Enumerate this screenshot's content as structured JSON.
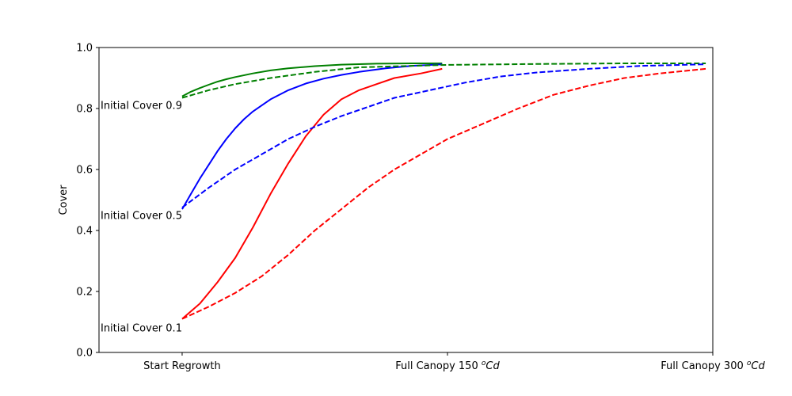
{
  "chart_data": {
    "type": "line",
    "title": "",
    "xlabel": "",
    "ylabel": "Cover",
    "xlim": [
      -47,
      300
    ],
    "ylim": [
      0,
      1.0
    ],
    "yticks": [
      "0.0",
      "0.2",
      "0.4",
      "0.6",
      "0.8",
      "1.0"
    ],
    "xticks": [
      {
        "value": 0,
        "label": "Start Regrowth",
        "sup": ""
      },
      {
        "value": 150,
        "label": "Full Canopy 150 ",
        "sup": "o",
        "suffix": "Cd"
      },
      {
        "value": 300,
        "label": "Full Canopy 300 ",
        "sup": "o",
        "suffix": "Cd"
      }
    ],
    "grid": false,
    "series": [
      {
        "color": "#008000",
        "style": "solid",
        "x": [
          0,
          5,
          10,
          15,
          20,
          25,
          30,
          40,
          50,
          60,
          75,
          90,
          110,
          130,
          147
        ],
        "y": [
          0.84,
          0.855,
          0.867,
          0.878,
          0.888,
          0.896,
          0.903,
          0.915,
          0.925,
          0.932,
          0.939,
          0.944,
          0.947,
          0.948,
          0.948
        ]
      },
      {
        "color": "#0000ff",
        "style": "solid",
        "x": [
          0,
          5,
          10,
          15,
          20,
          25,
          30,
          35,
          40,
          45,
          50,
          60,
          70,
          80,
          90,
          100,
          115,
          130,
          147
        ],
        "y": [
          0.47,
          0.52,
          0.57,
          0.615,
          0.66,
          0.7,
          0.735,
          0.765,
          0.79,
          0.81,
          0.83,
          0.86,
          0.882,
          0.898,
          0.91,
          0.92,
          0.932,
          0.94,
          0.945
        ]
      },
      {
        "color": "#ff0000",
        "style": "solid",
        "x": [
          0,
          10,
          20,
          30,
          40,
          50,
          60,
          70,
          80,
          90,
          100,
          110,
          120,
          135,
          147
        ],
        "y": [
          0.11,
          0.16,
          0.23,
          0.31,
          0.41,
          0.52,
          0.62,
          0.71,
          0.78,
          0.83,
          0.86,
          0.88,
          0.9,
          0.915,
          0.93
        ]
      },
      {
        "color": "#008000",
        "style": "dashed",
        "x": [
          0,
          15,
          30,
          50,
          75,
          100,
          150,
          200,
          250,
          296
        ],
        "y": [
          0.835,
          0.86,
          0.88,
          0.9,
          0.92,
          0.935,
          0.943,
          0.946,
          0.948,
          0.948
        ]
      },
      {
        "color": "#0000ff",
        "style": "dashed",
        "x": [
          0,
          15,
          30,
          45,
          60,
          75,
          90,
          105,
          120,
          140,
          160,
          180,
          200,
          230,
          260,
          296
        ],
        "y": [
          0.475,
          0.54,
          0.6,
          0.65,
          0.7,
          0.74,
          0.775,
          0.805,
          0.835,
          0.86,
          0.885,
          0.905,
          0.918,
          0.93,
          0.94,
          0.945
        ]
      },
      {
        "color": "#ff0000",
        "style": "dashed",
        "x": [
          0,
          15,
          30,
          45,
          60,
          75,
          90,
          105,
          120,
          135,
          150,
          170,
          190,
          210,
          230,
          250,
          270,
          296
        ],
        "y": [
          0.11,
          0.15,
          0.195,
          0.25,
          0.32,
          0.4,
          0.47,
          0.54,
          0.6,
          0.65,
          0.7,
          0.75,
          0.8,
          0.845,
          0.875,
          0.9,
          0.915,
          0.93
        ]
      }
    ],
    "annotations": [
      {
        "text": "Initial Cover 0.9",
        "x": 0,
        "y": 0.81
      },
      {
        "text": "Initial Cover 0.5",
        "x": 0,
        "y": 0.45
      },
      {
        "text": "Initial Cover 0.1",
        "x": 0,
        "y": 0.08
      }
    ]
  }
}
